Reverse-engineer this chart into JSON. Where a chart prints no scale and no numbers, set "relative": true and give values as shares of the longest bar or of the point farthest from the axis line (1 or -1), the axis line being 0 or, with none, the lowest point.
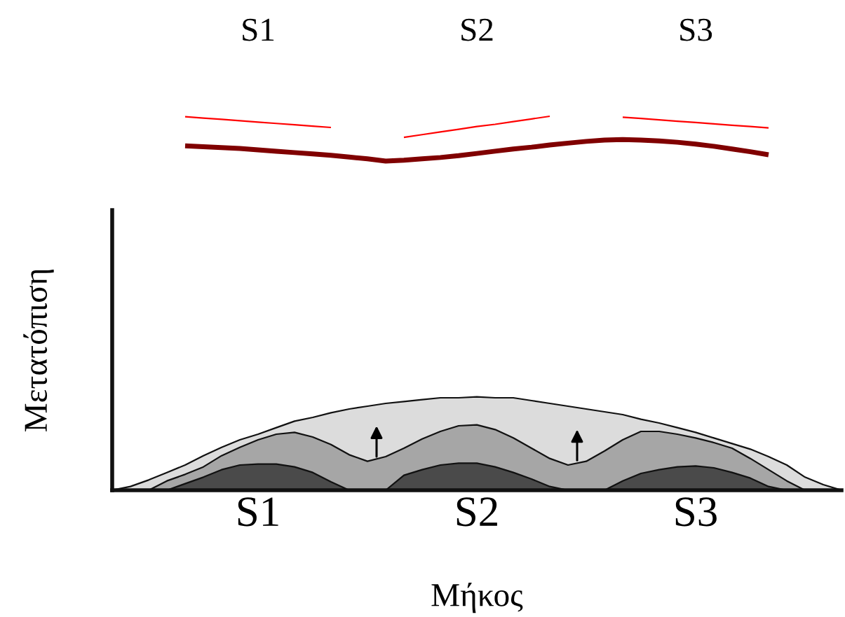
{
  "chart_data": [
    {
      "type": "line",
      "relative": true,
      "categories": [
        null,
        null,
        null,
        null,
        null,
        null,
        null,
        null,
        null,
        null,
        null,
        null,
        null,
        null,
        null,
        null,
        null,
        null,
        null,
        null,
        null,
        null,
        null,
        null,
        null,
        null,
        null,
        null,
        null,
        null,
        null,
        null,
        null,
        null,
        null,
        null,
        null,
        null,
        null,
        null,
        null
      ],
      "series": [
        {
          "name": "S1",
          "color": "#ff0000",
          "values": [
            null,
            null,
            null,
            null,
            0.99,
            0.96,
            0.93,
            0.9,
            0.87,
            0.84,
            0.81,
            0.78,
            0.75,
            null,
            null,
            null,
            null,
            null,
            null,
            null,
            null,
            null,
            null,
            null,
            null,
            null,
            null,
            null,
            null,
            null,
            null,
            null,
            null,
            null,
            null,
            null,
            null,
            null,
            null,
            null,
            null
          ]
        },
        {
          "name": "S2",
          "color": "#ff0000",
          "values": [
            null,
            null,
            null,
            null,
            null,
            null,
            null,
            null,
            null,
            null,
            null,
            null,
            null,
            null,
            null,
            null,
            0.53,
            0.59,
            0.65,
            0.71,
            0.77,
            0.82,
            0.88,
            0.94,
            1.0,
            null,
            null,
            null,
            null,
            null,
            null,
            null,
            null,
            null,
            null,
            null,
            null,
            null,
            null,
            null,
            null
          ]
        },
        {
          "name": "S3",
          "color": "#ff0000",
          "values": [
            null,
            null,
            null,
            null,
            null,
            null,
            null,
            null,
            null,
            null,
            null,
            null,
            null,
            null,
            null,
            null,
            null,
            null,
            null,
            null,
            null,
            null,
            null,
            null,
            null,
            null,
            null,
            null,
            0.98,
            0.95,
            0.92,
            0.89,
            0.86,
            0.83,
            0.8,
            0.77,
            0.74,
            null,
            null,
            null,
            null
          ]
        },
        {
          "color": "#800000",
          "values": [
            null,
            null,
            null,
            null,
            0.34,
            0.32,
            0.3,
            0.28,
            0.25,
            0.22,
            0.19,
            0.16,
            0.13,
            0.09,
            0.05,
            0.0,
            0.02,
            0.05,
            0.08,
            0.12,
            0.17,
            0.22,
            0.27,
            0.31,
            0.36,
            0.4,
            0.44,
            0.47,
            0.48,
            0.47,
            0.45,
            0.42,
            0.38,
            0.33,
            0.27,
            0.21,
            0.14,
            null,
            null,
            null,
            null
          ]
        }
      ]
    },
    {
      "type": "area",
      "relative": true,
      "xlabel": "Μήκος",
      "ylabel": "Μετατόπιση",
      "annotations": [
        "S1",
        "S2",
        "S3"
      ],
      "categories": [
        null,
        null,
        null,
        null,
        null,
        null,
        null,
        null,
        null,
        null,
        null,
        null,
        null,
        null,
        null,
        null,
        null,
        null,
        null,
        null,
        null,
        null,
        null,
        null,
        null,
        null,
        null,
        null,
        null,
        null,
        null,
        null,
        null,
        null,
        null,
        null,
        null,
        null,
        null,
        null,
        null
      ],
      "series": [
        {
          "color": "#dcdcdc",
          "values": [
            0,
            0.04,
            0.11,
            0.19,
            0.27,
            0.37,
            0.46,
            0.54,
            0.6,
            0.67,
            0.74,
            0.78,
            0.83,
            0.87,
            0.9,
            0.93,
            0.95,
            0.97,
            0.99,
            0.99,
            1.0,
            0.99,
            0.99,
            0.96,
            0.93,
            0.9,
            0.87,
            0.84,
            0.81,
            0.76,
            0.72,
            0.67,
            0.62,
            0.56,
            0.5,
            0.44,
            0.36,
            0.27,
            0.14,
            0.06,
            0
          ]
        },
        {
          "color": "#a6a6a6",
          "values": [
            null,
            null,
            0,
            0.1,
            0.17,
            0.25,
            0.37,
            0.46,
            0.54,
            0.6,
            0.62,
            0.57,
            0.49,
            0.38,
            0.31,
            0.36,
            0.45,
            0.55,
            0.63,
            0.69,
            0.7,
            0.65,
            0.56,
            0.45,
            0.34,
            0.27,
            0.31,
            0.42,
            0.54,
            0.63,
            0.63,
            0.6,
            0.56,
            0.51,
            0.45,
            0.34,
            0.22,
            0.1,
            0,
            null,
            null
          ]
        },
        {
          "color": "#4a4a4a",
          "values": [
            null,
            null,
            null,
            0,
            0.07,
            0.14,
            0.22,
            0.27,
            0.28,
            0.28,
            0.25,
            0.19,
            0.09,
            0,
            0,
            0,
            0.16,
            0.22,
            0.27,
            0.29,
            0.29,
            0.25,
            0.19,
            0.12,
            0.04,
            0,
            0,
            0,
            0.1,
            0.18,
            0.22,
            0.25,
            0.26,
            0.24,
            0.19,
            0.13,
            0.04,
            0,
            null,
            null,
            null
          ]
        }
      ]
    }
  ]
}
